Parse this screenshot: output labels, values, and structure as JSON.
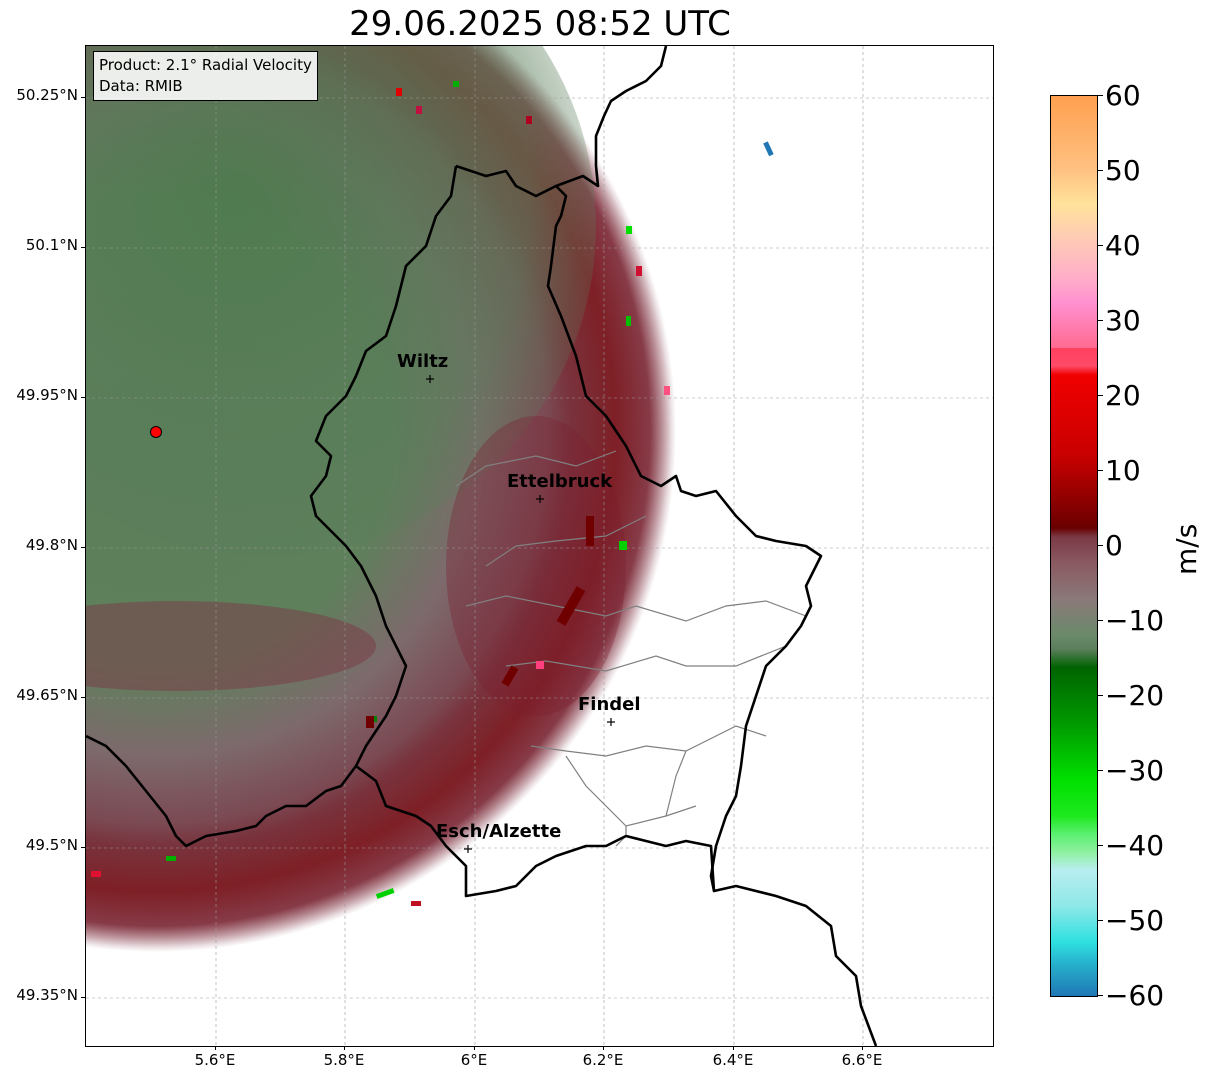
{
  "title": "29.06.2025 08:52 UTC",
  "info_box": {
    "product": "Product: 2.1° Radial Velocity",
    "data_source": "Data: RMIB"
  },
  "axes": {
    "lat_ticks": [
      "50.25°N",
      "50.1°N",
      "49.95°N",
      "49.8°N",
      "49.65°N",
      "49.5°N",
      "49.35°N"
    ],
    "lon_ticks": [
      "5.6°E",
      "5.8°E",
      "6°E",
      "6.2°E",
      "6.4°E",
      "6.6°E"
    ],
    "lat_range": [
      49.3,
      50.3
    ],
    "lon_range": [
      5.4,
      6.8
    ]
  },
  "cities": [
    {
      "name": "Wiltz",
      "lon": 5.93,
      "lat": 49.97
    },
    {
      "name": "Ettelbruck",
      "lon": 6.1,
      "lat": 49.85
    },
    {
      "name": "Findel",
      "lon": 6.21,
      "lat": 49.63
    },
    {
      "name": "Esch/Alzette",
      "lon": 5.99,
      "lat": 49.5
    }
  ],
  "radar_site": {
    "lon": 5.505,
    "lat": 49.915,
    "color": "#ff0000"
  },
  "colorbar": {
    "label": "m/s",
    "min": -60,
    "max": 60,
    "ticks": [
      "60",
      "50",
      "40",
      "30",
      "20",
      "10",
      "0",
      "−10",
      "−20",
      "−30",
      "−40",
      "−50",
      "−60"
    ],
    "colors": {
      "strong_negative": "#1f77b4",
      "cyan": "#2ee0e0",
      "light_cyan": "#b8eef0",
      "light_green": "#8ef0a0",
      "bright_green": "#1ee81e",
      "green": "#009c00",
      "dark_green": "#006400",
      "muted_green": "#5a7d5a",
      "grey": "#8a7a7a",
      "muted_red": "#7a3a46",
      "dark_red": "#7a0000",
      "red": "#e60000",
      "pink": "#ff5a7a",
      "light_pink": "#ffb0c8",
      "peach": "#ffe29a",
      "orange": "#ffa050"
    }
  }
}
